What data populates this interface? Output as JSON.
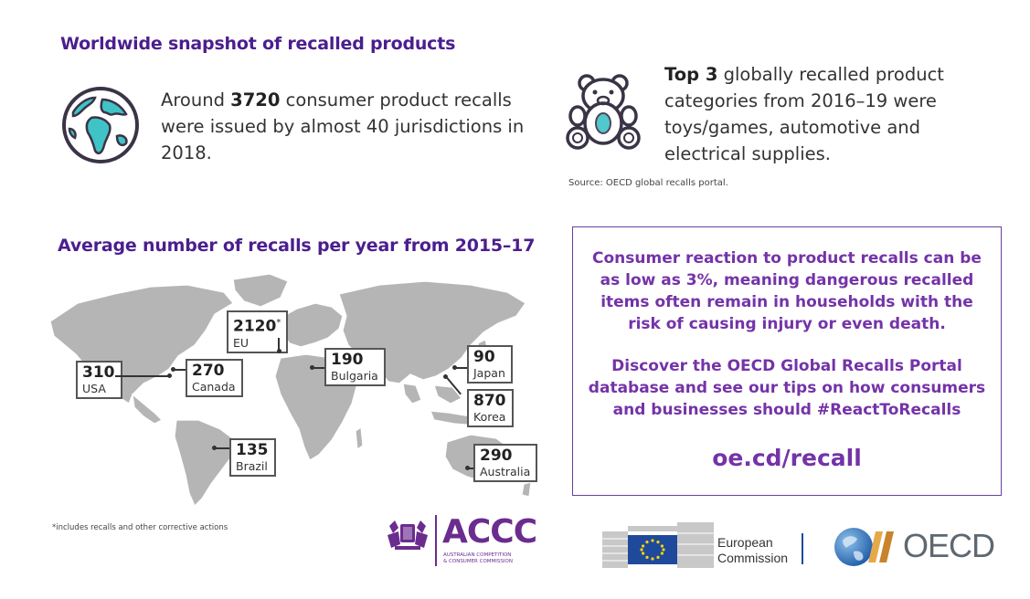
{
  "header": {
    "title_snapshot": "Worldwide snapshot of recalled products",
    "title_map": "Average number of recalls per year from 2015–17"
  },
  "snapshot": {
    "recall_pre": "Around ",
    "recall_count": "3720",
    "recall_post": " consumer product recalls were issued by almost 40 jurisdictions in 2018.",
    "top_bold": "Top 3",
    "top_post": " globally recalled product categories from 2016–19 were toys/games, automotive and electrical supplies.",
    "source": "Source: OECD global recalls portal."
  },
  "map": {
    "callouts": [
      {
        "id": "eu",
        "value": "2120",
        "sup": "*",
        "label": "EU"
      },
      {
        "id": "usa",
        "value": "310",
        "sup": "",
        "label": "USA"
      },
      {
        "id": "canada",
        "value": "270",
        "sup": "",
        "label": "Canada"
      },
      {
        "id": "bulgaria",
        "value": "190",
        "sup": "",
        "label": "Bulgaria"
      },
      {
        "id": "japan",
        "value": "90",
        "sup": "",
        "label": "Japan"
      },
      {
        "id": "korea",
        "value": "870",
        "sup": "",
        "label": "Korea"
      },
      {
        "id": "brazil",
        "value": "135",
        "sup": "",
        "label": "Brazil"
      },
      {
        "id": "australia",
        "value": "290",
        "sup": "",
        "label": "Australia"
      }
    ],
    "footnote": "*includes recalls and other corrective actions"
  },
  "info_box": {
    "paragraph1": "Consumer reaction to product recalls can be as low as 3%, meaning dangerous recalled items often remain in households with the risk of causing injury or even death.",
    "paragraph2": "Discover the OECD Global Recalls Portal database and see our tips on how consumers and businesses should #ReactToRecalls",
    "link": "oe.cd/recall"
  },
  "logos": {
    "accc_name": "ACCC",
    "accc_sub1": "AUSTRALIAN COMPETITION",
    "accc_sub2": "& CONSUMER COMMISSION",
    "ec_line1": "European",
    "ec_line2": "Commission",
    "oecd_name": "OECD"
  },
  "colors": {
    "heading_purple": "#4b1e8e",
    "box_purple": "#7433a8",
    "map_gray": "#b5b5b5",
    "icon_teal": "#3fc3c6",
    "icon_dark": "#3b3346",
    "accc_purple": "#6b2c8f",
    "eu_blue": "#1f4a9b",
    "eu_yellow": "#ffd400",
    "oecd_blue": "#1f5ea8",
    "oecd_gray": "#5e6870"
  },
  "icons": {
    "globe": "globe-icon",
    "teddy": "teddy-bear-icon"
  }
}
